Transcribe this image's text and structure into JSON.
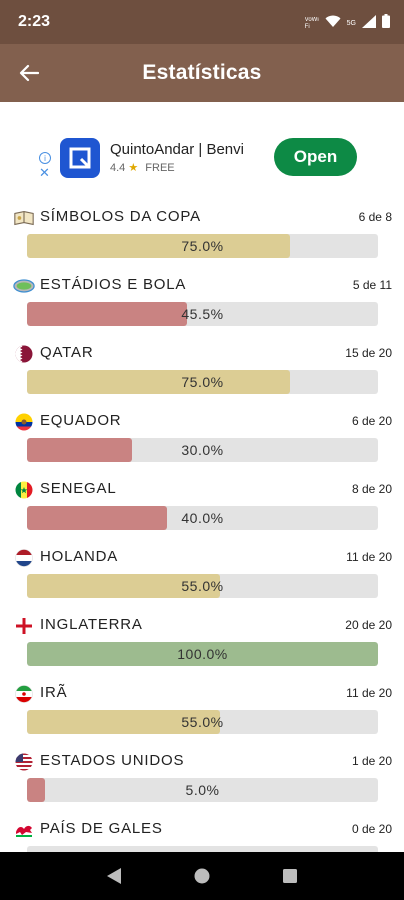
{
  "status_bar": {
    "time": "2:23",
    "wifi_label": "VoWi-Fi",
    "network_label": "5G"
  },
  "app_bar": {
    "title": "Estatísticas"
  },
  "ad": {
    "info_icon": "info-icon",
    "close_symbol": "✕",
    "name": "QuintoAndar | Benvi",
    "rating": "4.4",
    "star": "★",
    "price": "FREE",
    "button_label": "Open",
    "button_color": "#0d8a45"
  },
  "colors": {
    "gold": "#dccd94",
    "red": "#c98382",
    "green": "#9dbb8f",
    "track": "#e3e3e3",
    "header": "#82604e"
  },
  "stats": [
    {
      "name": "SÍMBOLOS DA COPA",
      "count": "6 de 8",
      "percent_label": "75.0%",
      "percent": 75.0,
      "color": "#dccd94",
      "icon": "trophy-book-icon"
    },
    {
      "name": "ESTÁDIOS E BOLA",
      "count": "5 de 11",
      "percent_label": "45.5%",
      "percent": 45.5,
      "color": "#c98382",
      "icon": "stadium-icon"
    },
    {
      "name": "QATAR",
      "count": "15 de 20",
      "percent_label": "75.0%",
      "percent": 75.0,
      "color": "#dccd94",
      "icon": "qatar-flag-icon"
    },
    {
      "name": "EQUADOR",
      "count": "6 de 20",
      "percent_label": "30.0%",
      "percent": 30.0,
      "color": "#c98382",
      "icon": "ecuador-flag-icon"
    },
    {
      "name": "SENEGAL",
      "count": "8 de 20",
      "percent_label": "40.0%",
      "percent": 40.0,
      "color": "#c98382",
      "icon": "senegal-flag-icon"
    },
    {
      "name": "HOLANDA",
      "count": "11 de 20",
      "percent_label": "55.0%",
      "percent": 55.0,
      "color": "#dccd94",
      "icon": "netherlands-flag-icon"
    },
    {
      "name": "INGLATERRA",
      "count": "20 de 20",
      "percent_label": "100.0%",
      "percent": 100.0,
      "color": "#9dbb8f",
      "icon": "england-flag-icon"
    },
    {
      "name": "IRÃ",
      "count": "11 de 20",
      "percent_label": "55.0%",
      "percent": 55.0,
      "color": "#dccd94",
      "icon": "iran-flag-icon"
    },
    {
      "name": "ESTADOS UNIDOS",
      "count": "1 de 20",
      "percent_label": "5.0%",
      "percent": 5.0,
      "color": "#c98382",
      "icon": "usa-flag-icon"
    },
    {
      "name": "PAÍS DE GALES",
      "count": "0 de 20",
      "percent_label": "",
      "percent": 0,
      "color": "#c98382",
      "icon": "wales-flag-icon"
    }
  ]
}
